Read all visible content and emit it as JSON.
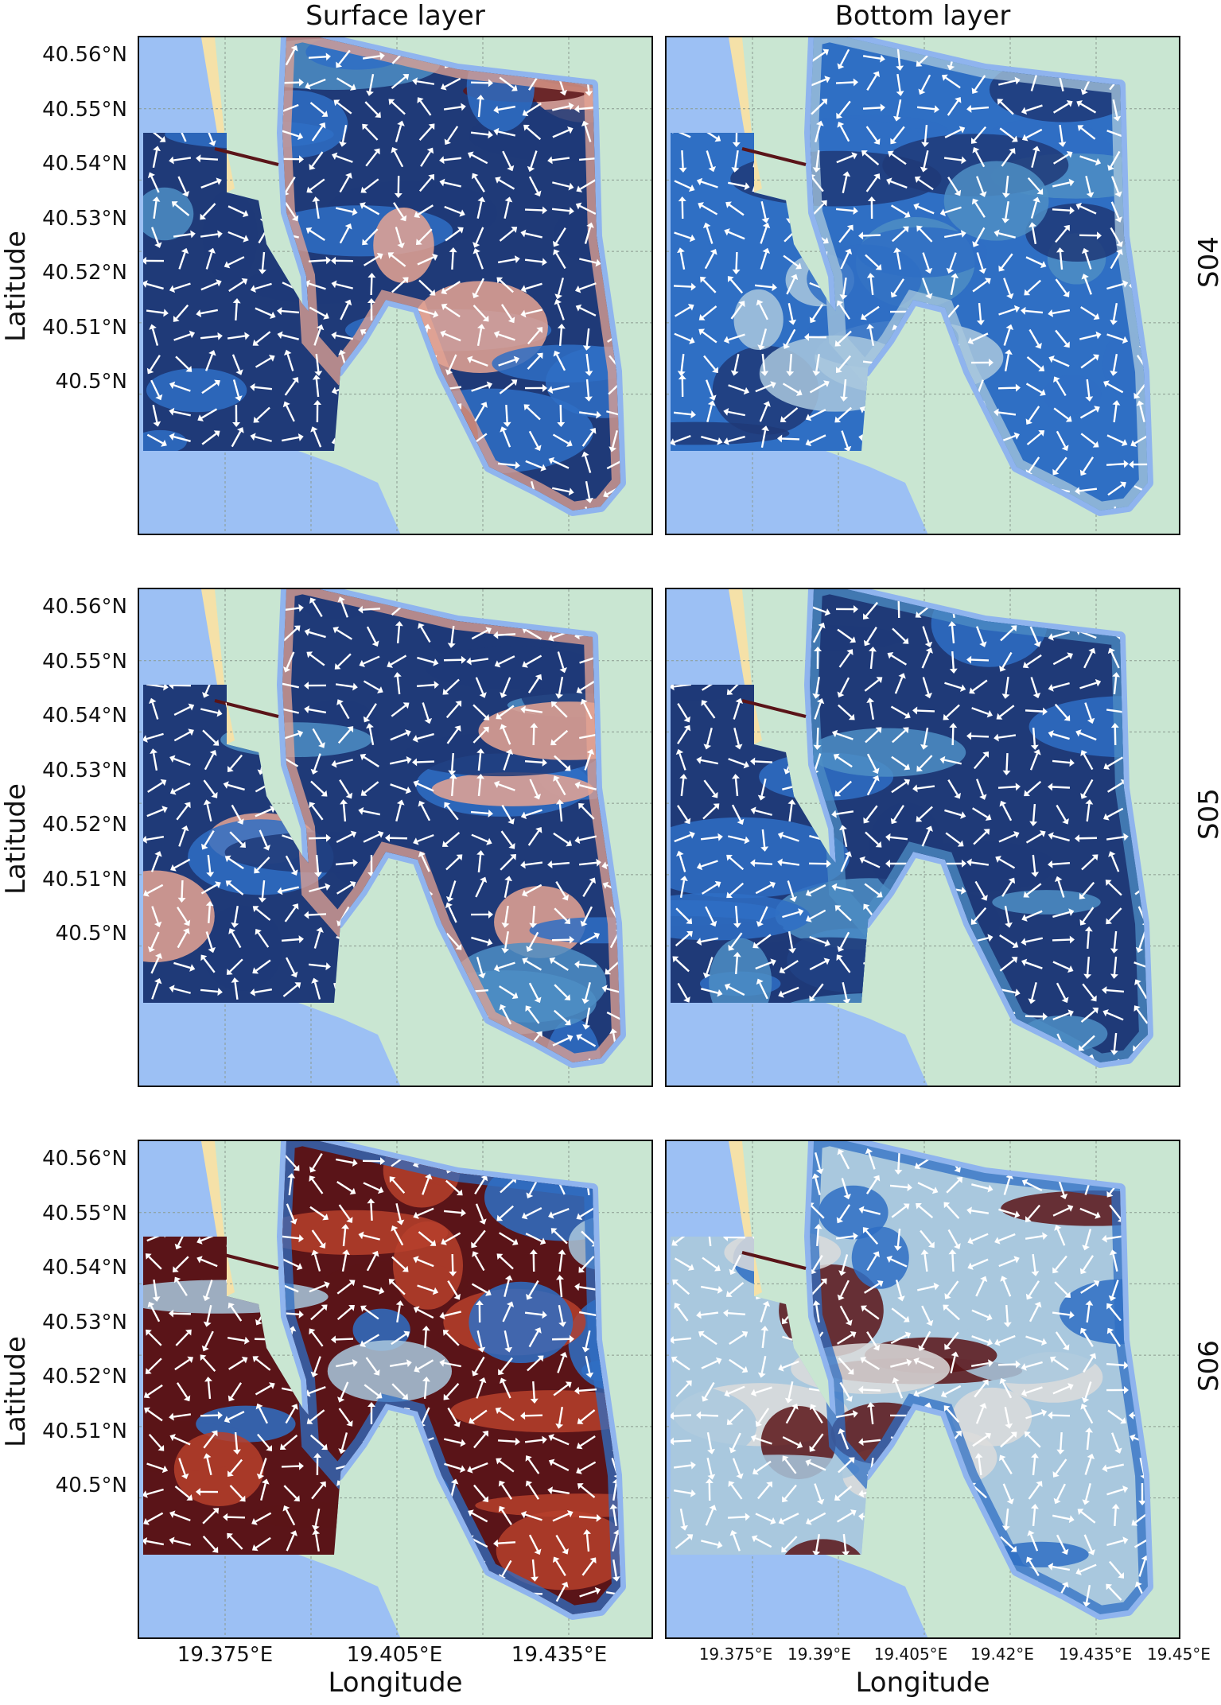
{
  "columns": [
    "Surface layer",
    "Bottom layer"
  ],
  "rows": [
    "S04",
    "S05",
    "S06"
  ],
  "axes": {
    "ylabel": "Latitude",
    "xlabel": "Longitude",
    "lat_ticks": [
      "40.56°N",
      "40.55°N",
      "40.54°N",
      "40.53°N",
      "40.52°N",
      "40.51°N",
      "40.5°N"
    ],
    "lon_ticks_left": [
      "19.375°E",
      "19.405°E",
      "19.435°E"
    ],
    "lon_ticks_right": [
      "19.375°E",
      "19.39°E",
      "19.405°E",
      "19.42°E",
      "19.435°E",
      "19.45°E"
    ]
  },
  "colors": {
    "sea": "#9cc0f4",
    "land": "#c9e6d2",
    "beach": "#f5e1a8",
    "navy": "#1f3a78",
    "blue": "#2f6fc4",
    "mid_blue": "#4e8ec4",
    "light_blue": "#a9c8de",
    "pale": "#dcdcdc",
    "salmon": "#e6a493",
    "red": "#b6402b",
    "dark_red": "#5a1418",
    "arrow": "#ffffff"
  },
  "panels": [
    {
      "row": "S04",
      "layer": "Surface layer",
      "dominant": [
        "navy",
        "blue",
        "mid_blue",
        "dark_red",
        "salmon"
      ]
    },
    {
      "row": "S04",
      "layer": "Bottom layer",
      "dominant": [
        "blue",
        "navy",
        "mid_blue",
        "light_blue"
      ]
    },
    {
      "row": "S05",
      "layer": "Surface layer",
      "dominant": [
        "navy",
        "blue",
        "mid_blue",
        "salmon"
      ]
    },
    {
      "row": "S05",
      "layer": "Bottom layer",
      "dominant": [
        "navy",
        "blue",
        "mid_blue"
      ]
    },
    {
      "row": "S06",
      "layer": "Surface layer",
      "dominant": [
        "dark_red",
        "red",
        "light_blue",
        "blue"
      ]
    },
    {
      "row": "S06",
      "layer": "Bottom layer",
      "dominant": [
        "light_blue",
        "pale",
        "dark_red",
        "blue"
      ]
    }
  ]
}
